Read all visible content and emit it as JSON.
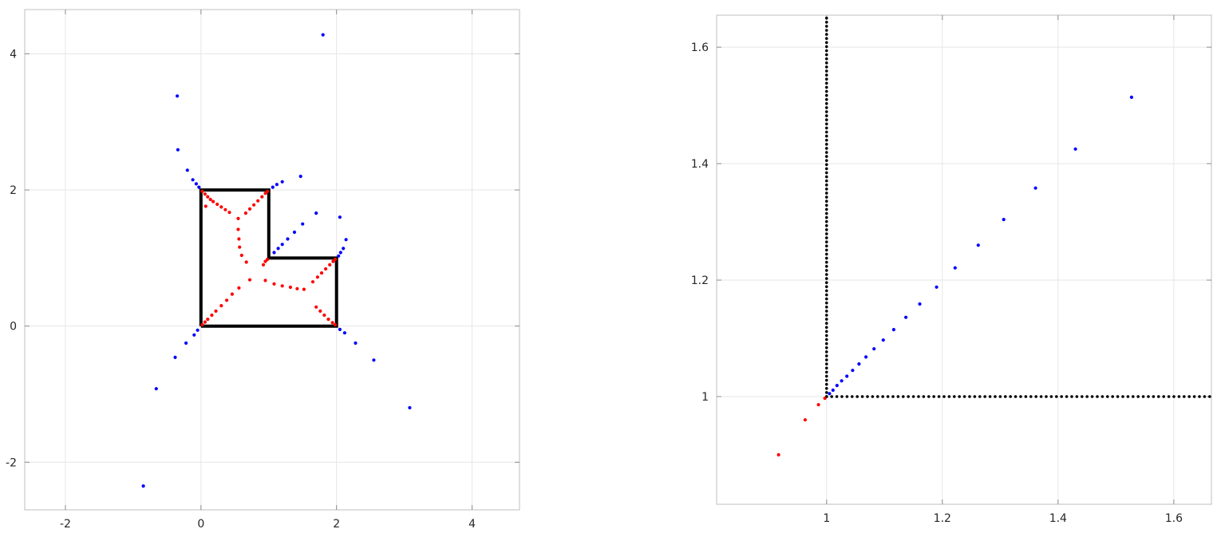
{
  "chart_data": [
    {
      "type": "scatter",
      "xlim": [
        -2.6,
        4.7
      ],
      "ylim": [
        -2.7,
        4.65
      ],
      "xticks": [
        -2,
        0,
        2,
        4
      ],
      "yticks": [
        -2,
        0,
        2,
        4
      ],
      "xtick_labels": [
        "-2",
        "0",
        "2",
        "4"
      ],
      "ytick_labels": [
        "-2",
        "0",
        "2",
        "4"
      ],
      "grid": true,
      "boundary": {
        "color": "#000000",
        "polygon": [
          [
            0,
            0
          ],
          [
            2,
            0
          ],
          [
            2,
            1
          ],
          [
            1,
            1
          ],
          [
            1,
            2
          ],
          [
            0,
            2
          ],
          [
            0,
            0
          ]
        ]
      },
      "series": [
        {
          "color": "#0000ff",
          "points": [
            [
              1.8,
              4.28
            ],
            [
              -0.35,
              3.38
            ],
            [
              -0.34,
              2.59
            ],
            [
              -0.2,
              2.29
            ],
            [
              -0.12,
              2.15
            ],
            [
              -0.07,
              2.09
            ],
            [
              -0.03,
              2.04
            ],
            [
              1.06,
              2.04
            ],
            [
              1.12,
              2.08
            ],
            [
              1.2,
              2.12
            ],
            [
              1.47,
              2.2
            ],
            [
              1.08,
              1.08
            ],
            [
              1.14,
              1.14
            ],
            [
              1.2,
              1.2
            ],
            [
              1.28,
              1.28
            ],
            [
              1.38,
              1.38
            ],
            [
              1.5,
              1.5
            ],
            [
              1.7,
              1.66
            ],
            [
              2.03,
              1.03
            ],
            [
              2.06,
              1.08
            ],
            [
              2.1,
              1.14
            ],
            [
              2.14,
              1.27
            ],
            [
              2.05,
              1.6
            ],
            [
              2.05,
              -0.05
            ],
            [
              2.12,
              -0.1
            ],
            [
              2.28,
              -0.25
            ],
            [
              2.55,
              -0.5
            ],
            [
              3.08,
              -1.2
            ],
            [
              -0.05,
              -0.06
            ],
            [
              -0.1,
              -0.13
            ],
            [
              -0.22,
              -0.25
            ],
            [
              -0.38,
              -0.46
            ],
            [
              -0.66,
              -0.92
            ],
            [
              -0.85,
              -2.35
            ]
          ]
        },
        {
          "color": "#ff0000",
          "points": [
            [
              0.02,
              1.98
            ],
            [
              0.06,
              1.94
            ],
            [
              0.1,
              1.9
            ],
            [
              0.14,
              1.86
            ],
            [
              0.18,
              1.83
            ],
            [
              0.24,
              1.79
            ],
            [
              0.3,
              1.75
            ],
            [
              0.36,
              1.71
            ],
            [
              0.42,
              1.67
            ],
            [
              0.07,
              1.76
            ],
            [
              0.55,
              1.58
            ],
            [
              0.55,
              1.42
            ],
            [
              0.56,
              1.28
            ],
            [
              0.57,
              1.16
            ],
            [
              0.6,
              1.04
            ],
            [
              0.67,
              0.94
            ],
            [
              0.66,
              1.66
            ],
            [
              0.72,
              1.72
            ],
            [
              0.78,
              1.78
            ],
            [
              0.84,
              1.84
            ],
            [
              0.9,
              1.9
            ],
            [
              0.95,
              1.95
            ],
            [
              0.98,
              1.98
            ],
            [
              0.92,
              0.9
            ],
            [
              0.95,
              0.95
            ],
            [
              0.98,
              0.98
            ],
            [
              0.02,
              0.02
            ],
            [
              0.06,
              0.06
            ],
            [
              0.1,
              0.1
            ],
            [
              0.16,
              0.16
            ],
            [
              0.22,
              0.22
            ],
            [
              0.3,
              0.3
            ],
            [
              0.38,
              0.38
            ],
            [
              0.46,
              0.47
            ],
            [
              0.56,
              0.56
            ],
            [
              0.72,
              0.68
            ],
            [
              0.95,
              0.67
            ],
            [
              1.08,
              0.62
            ],
            [
              1.2,
              0.59
            ],
            [
              1.32,
              0.57
            ],
            [
              1.42,
              0.55
            ],
            [
              1.52,
              0.54
            ],
            [
              1.65,
              0.65
            ],
            [
              1.72,
              0.72
            ],
            [
              1.78,
              0.78
            ],
            [
              1.84,
              0.84
            ],
            [
              1.9,
              0.9
            ],
            [
              1.95,
              0.95
            ],
            [
              1.98,
              0.98
            ],
            [
              1.7,
              0.28
            ],
            [
              1.76,
              0.22
            ],
            [
              1.82,
              0.16
            ],
            [
              1.88,
              0.1
            ],
            [
              1.94,
              0.05
            ],
            [
              1.98,
              0.02
            ]
          ]
        }
      ]
    },
    {
      "type": "scatter",
      "xlim": [
        0.81,
        1.665
      ],
      "ylim": [
        0.815,
        1.655
      ],
      "xticks": [
        1,
        1.2,
        1.4,
        1.6
      ],
      "yticks": [
        1,
        1.2,
        1.4,
        1.6
      ],
      "xtick_labels": [
        "1",
        "1.2",
        "1.4",
        "1.6"
      ],
      "ytick_labels": [
        "1",
        "1.2",
        "1.4",
        "1.6"
      ],
      "grid": true,
      "boundary": {
        "color": "#000000",
        "style": "dots",
        "vertical": {
          "x": 1,
          "from": 1,
          "to": 1.655
        },
        "horizontal": {
          "y": 1,
          "from": 1,
          "to": 1.665
        }
      },
      "series": [
        {
          "color": "#0000ff",
          "points": [
            [
              1.005,
              1.005
            ],
            [
              1.011,
              1.011
            ],
            [
              1.018,
              1.019
            ],
            [
              1.026,
              1.027
            ],
            [
              1.035,
              1.035
            ],
            [
              1.045,
              1.045
            ],
            [
              1.056,
              1.056
            ],
            [
              1.068,
              1.068
            ],
            [
              1.082,
              1.082
            ],
            [
              1.098,
              1.097
            ],
            [
              1.116,
              1.115
            ],
            [
              1.137,
              1.136
            ],
            [
              1.161,
              1.159
            ],
            [
              1.19,
              1.188
            ],
            [
              1.222,
              1.221
            ],
            [
              1.262,
              1.26
            ],
            [
              1.306,
              1.304
            ],
            [
              1.361,
              1.358
            ],
            [
              1.43,
              1.425
            ],
            [
              1.527,
              1.514
            ]
          ]
        },
        {
          "color": "#ff0000",
          "points": [
            [
              0.997,
              0.997
            ],
            [
              0.986,
              0.986
            ],
            [
              0.963,
              0.96
            ],
            [
              0.917,
              0.9
            ]
          ]
        }
      ]
    }
  ]
}
